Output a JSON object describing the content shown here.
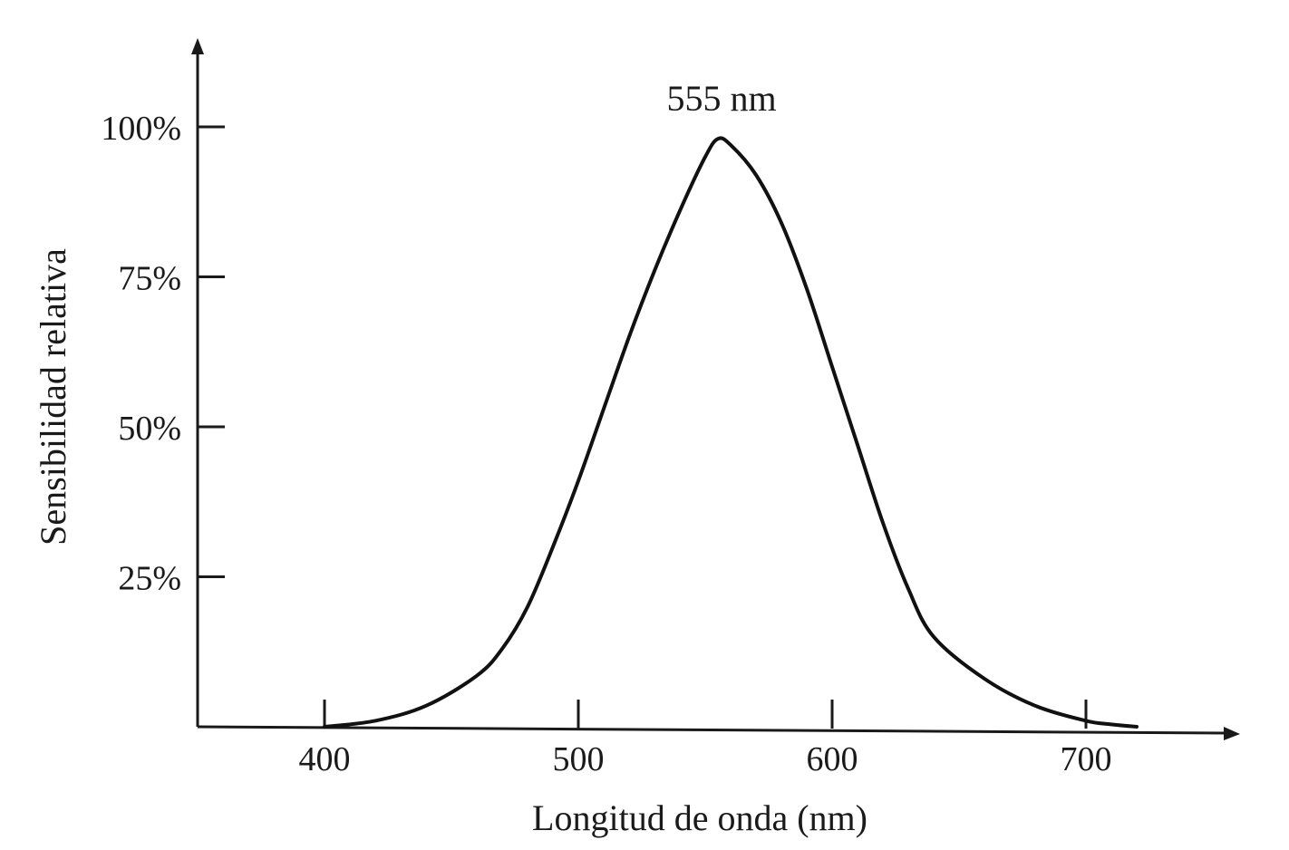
{
  "chart_data": {
    "type": "line",
    "title": "",
    "xlabel": "Longitud de onda (nm)",
    "ylabel": "Sensibilidad relativa",
    "xlim": [
      350,
      760
    ],
    "ylim": [
      0,
      112
    ],
    "x_ticks": [
      400,
      500,
      600,
      700
    ],
    "x_tick_labels": [
      "400",
      "500",
      "600",
      "700"
    ],
    "y_ticks": [
      25,
      50,
      75,
      100
    ],
    "y_tick_labels": [
      "25%",
      "50%",
      "75%",
      "100%"
    ],
    "grid": false,
    "legend": "none",
    "annotations": [
      {
        "text": "555  nm",
        "x": 555,
        "y": 100
      }
    ],
    "series": [
      {
        "x": [
          400,
          420,
          440,
          460,
          470,
          480,
          490,
          500,
          510,
          520,
          530,
          540,
          550,
          555,
          560,
          570,
          580,
          590,
          600,
          610,
          620,
          630,
          640,
          660,
          680,
          700,
          710,
          720
        ],
        "values": [
          0,
          1,
          3.5,
          8.5,
          13,
          20,
          30,
          41,
          53,
          65,
          76,
          86,
          95,
          98,
          97,
          92,
          84,
          73,
          60,
          47,
          34,
          23,
          15,
          8,
          3.5,
          1,
          0.4,
          0
        ]
      }
    ]
  }
}
